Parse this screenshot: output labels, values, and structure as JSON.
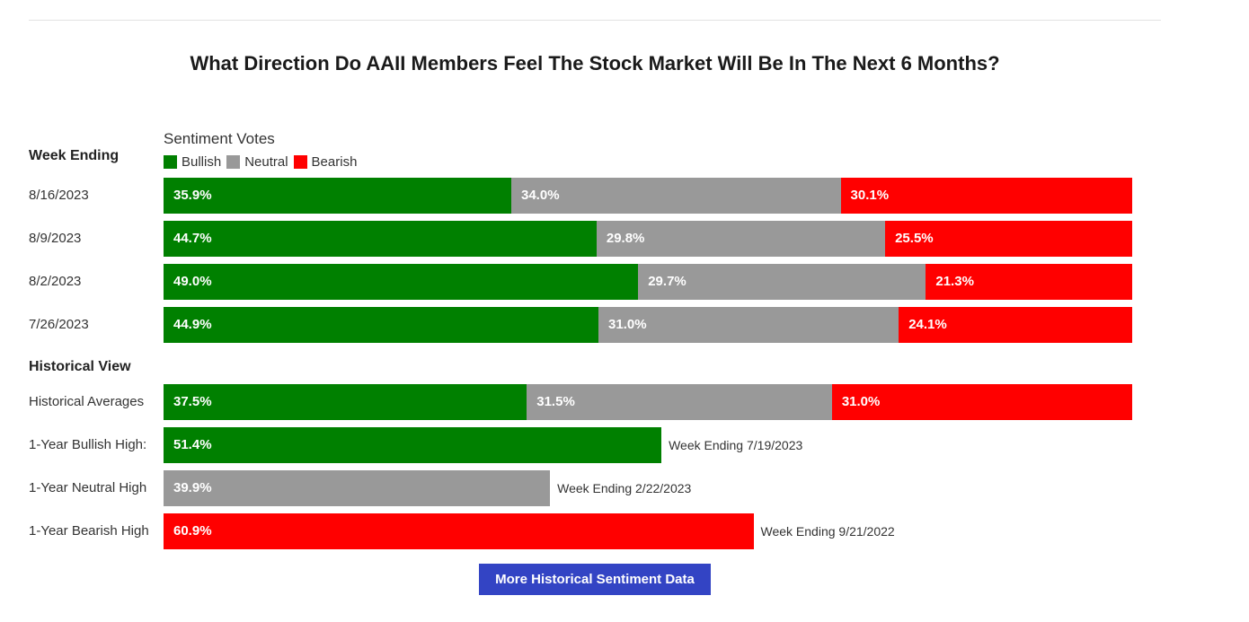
{
  "title": "What Direction Do AAII Members Feel The Stock Market Will Be In The Next 6 Months?",
  "legend": {
    "title": "Sentiment Votes",
    "items": [
      {
        "label": "Bullish",
        "color": "#008000"
      },
      {
        "label": "Neutral",
        "color": "#999999"
      },
      {
        "label": "Bearish",
        "color": "#ff0000"
      }
    ]
  },
  "week_ending_label": "Week Ending",
  "historical_view_label": "Historical View",
  "button_label": "More Historical Sentiment Data",
  "chart_data": {
    "type": "bar",
    "stacked": true,
    "orientation": "horizontal",
    "x_max": 100,
    "series_names": [
      "Bullish",
      "Neutral",
      "Bearish"
    ],
    "weekly": [
      {
        "label": "8/16/2023",
        "values": [
          35.9,
          34.0,
          30.1
        ],
        "texts": [
          "35.9%",
          "34.0%",
          "30.1%"
        ]
      },
      {
        "label": "8/9/2023",
        "values": [
          44.7,
          29.8,
          25.5
        ],
        "texts": [
          "44.7%",
          "29.8%",
          "25.5%"
        ]
      },
      {
        "label": "8/2/2023",
        "values": [
          49.0,
          29.7,
          21.3
        ],
        "texts": [
          "49.0%",
          "29.7%",
          "21.3%"
        ]
      },
      {
        "label": "7/26/2023",
        "values": [
          44.9,
          31.0,
          24.1
        ],
        "texts": [
          "44.9%",
          "31.0%",
          "24.1%"
        ]
      }
    ],
    "historical_averages": {
      "label": "Historical Averages",
      "values": [
        37.5,
        31.5,
        31.0
      ],
      "texts": [
        "37.5%",
        "31.5%",
        "31.0%"
      ]
    },
    "highs": [
      {
        "label": "1-Year Bullish High:",
        "series": 0,
        "value": 51.4,
        "text": "51.4%",
        "note": "Week Ending 7/19/2023"
      },
      {
        "label": "1-Year Neutral High",
        "series": 1,
        "value": 39.9,
        "text": "39.9%",
        "note": "Week Ending 2/22/2023"
      },
      {
        "label": "1-Year Bearish High",
        "series": 2,
        "value": 60.9,
        "text": "60.9%",
        "note": "Week Ending 9/21/2022"
      }
    ]
  }
}
